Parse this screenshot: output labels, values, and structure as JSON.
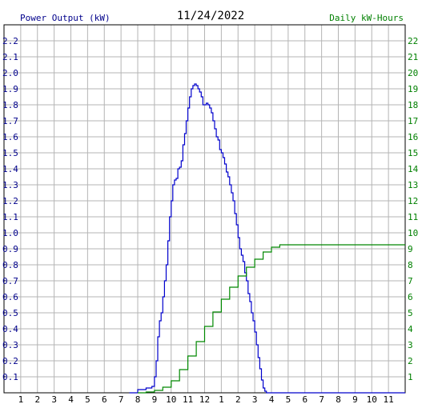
{
  "colors": {
    "background": "#ffffff",
    "grid": "#b4b4b4",
    "border": "#000000",
    "power_line": "#0000cc",
    "energy_line": "#008800",
    "power_label": "#00008b",
    "energy_label": "#008000",
    "tick_label": "#000000",
    "date": "#000000"
  },
  "chart_data": {
    "type": "line",
    "title": "11/24/2022",
    "y_left_label": "Power Output (kW)",
    "y_right_label": "Daily kW-Hours",
    "x_range": [
      0,
      24
    ],
    "y_left_range": [
      0,
      2.3
    ],
    "y_right_range": [
      0,
      23
    ],
    "x_tick_labels": [
      "1",
      "2",
      "3",
      "4",
      "5",
      "6",
      "7",
      "8",
      "9",
      "10",
      "11",
      "12",
      "1",
      "2",
      "3",
      "4",
      "5",
      "6",
      "7",
      "8",
      "9",
      "10",
      "11"
    ],
    "y_left_tick_labels": [
      "0.1",
      "0.2",
      "0.3",
      "0.4",
      "0.5",
      "0.6",
      "0.7",
      "0.8",
      "0.9",
      "1.0",
      "1.1",
      "1.2",
      "1.3",
      "1.4",
      "1.5",
      "1.6",
      "1.7",
      "1.8",
      "1.9",
      "2.0",
      "2.1",
      "2.2"
    ],
    "y_right_tick_labels": [
      "1",
      "2",
      "3",
      "4",
      "5",
      "6",
      "7",
      "8",
      "9",
      "10",
      "11",
      "12",
      "13",
      "14",
      "15",
      "16",
      "17",
      "18",
      "19",
      "20",
      "21",
      "22"
    ],
    "grid": true,
    "series": [
      {
        "axis": "left",
        "x": [
          7.5,
          8.0,
          8.5,
          8.85,
          9.0,
          9.1,
          9.2,
          9.3,
          9.4,
          9.5,
          9.6,
          9.7,
          9.8,
          9.9,
          10.0,
          10.1,
          10.2,
          10.3,
          10.4,
          10.5,
          10.6,
          10.7,
          10.8,
          10.9,
          11.0,
          11.1,
          11.2,
          11.3,
          11.4,
          11.5,
          11.6,
          11.7,
          11.8,
          11.9,
          12.0,
          12.1,
          12.2,
          12.3,
          12.4,
          12.5,
          12.6,
          12.7,
          12.8,
          12.9,
          13.0,
          13.1,
          13.2,
          13.3,
          13.4,
          13.5,
          13.6,
          13.7,
          13.8,
          13.9,
          14.0,
          14.1,
          14.2,
          14.3,
          14.4,
          14.5,
          14.6,
          14.7,
          14.8,
          14.9,
          15.0,
          15.1,
          15.2,
          15.3,
          15.4,
          15.5,
          15.6,
          15.7,
          15.8,
          15.9,
          16.0,
          16.1,
          16.2,
          16.3,
          16.4,
          16.5,
          16.6,
          16.7,
          16.8,
          16.9,
          17.0,
          17.5,
          24.0
        ],
        "y": [
          0.0,
          0.02,
          0.03,
          0.04,
          0.1,
          0.2,
          0.35,
          0.45,
          0.5,
          0.6,
          0.7,
          0.8,
          0.95,
          1.1,
          1.2,
          1.3,
          1.33,
          1.34,
          1.4,
          1.41,
          1.45,
          1.55,
          1.62,
          1.7,
          1.78,
          1.85,
          1.9,
          1.92,
          1.93,
          1.92,
          1.9,
          1.88,
          1.85,
          1.8,
          1.8,
          1.81,
          1.8,
          1.78,
          1.75,
          1.7,
          1.65,
          1.6,
          1.58,
          1.52,
          1.5,
          1.47,
          1.43,
          1.38,
          1.35,
          1.3,
          1.25,
          1.2,
          1.12,
          1.05,
          0.97,
          0.9,
          0.86,
          0.82,
          0.75,
          0.7,
          0.62,
          0.57,
          0.5,
          0.45,
          0.38,
          0.3,
          0.22,
          0.15,
          0.08,
          0.03,
          0.01,
          0.0,
          0.0,
          0.0,
          0.0,
          0.0,
          0.0,
          0.0,
          0.0,
          0.0,
          0.0,
          0.0,
          0.0,
          0.0,
          0.0,
          0.0,
          0.0
        ]
      },
      {
        "axis": "right",
        "x": [
          8.0,
          8.5,
          9.0,
          9.5,
          10.0,
          10.5,
          11.0,
          11.5,
          12.0,
          12.5,
          13.0,
          13.5,
          14.0,
          14.5,
          15.0,
          15.5,
          16.0,
          16.5,
          17.0,
          24.0
        ],
        "y": [
          0.0,
          0.05,
          0.15,
          0.35,
          0.75,
          1.45,
          2.3,
          3.2,
          4.15,
          5.05,
          5.85,
          6.6,
          7.3,
          7.85,
          8.35,
          8.8,
          9.1,
          9.25,
          9.25,
          9.25
        ]
      }
    ]
  }
}
